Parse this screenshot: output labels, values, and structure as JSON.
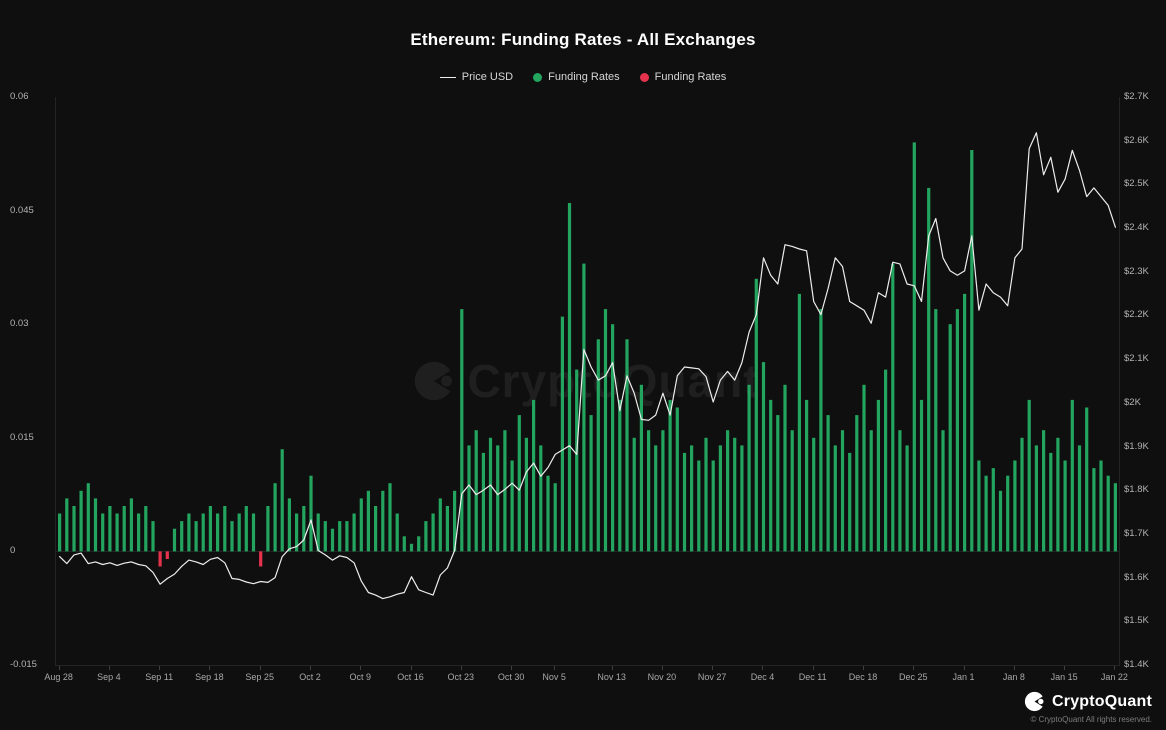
{
  "header": {
    "title": "Ethereum: Funding Rates - All Exchanges"
  },
  "legend": {
    "items": [
      {
        "label": "Price USD",
        "marker": "line",
        "color": "#ededed"
      },
      {
        "label": "Funding Rates",
        "marker": "dot",
        "color": "#23a55f"
      },
      {
        "label": "Funding Rates",
        "marker": "dot",
        "color": "#e5334d"
      }
    ]
  },
  "watermark": {
    "text": "CryptoQuant"
  },
  "footer": {
    "brand": "CryptoQuant",
    "copyright": "© CryptoQuant All rights reserved."
  },
  "colors": {
    "background": "#0f0f0f",
    "axis_text": "#b3b3b3",
    "axis_line": "#242424",
    "price_line": "#ededed",
    "funding_positive": "#23a55f",
    "funding_negative": "#e5334d"
  },
  "chart_data": {
    "type": "bar",
    "subtype": "bar + line combo with dual y-axes",
    "title": "Ethereum: Funding Rates - All Exchanges",
    "n_points": 148,
    "x_start": "Aug 28",
    "x_end": "Jan 22",
    "grid": false,
    "legend_position": "top",
    "x_tick_labels": [
      "Aug 28",
      "Sep 4",
      "Sep 11",
      "Sep 18",
      "Sep 25",
      "Oct 2",
      "Oct 9",
      "Oct 16",
      "Oct 23",
      "Oct 30",
      "Nov 5",
      "Nov 13",
      "Nov 20",
      "Nov 27",
      "Dec 4",
      "Dec 11",
      "Dec 18",
      "Dec 25",
      "Jan 1",
      "Jan 8",
      "Jan 15",
      "Jan 22"
    ],
    "x_tick_indices": [
      0,
      7,
      14,
      21,
      28,
      35,
      42,
      49,
      56,
      63,
      69,
      77,
      84,
      91,
      98,
      105,
      112,
      119,
      126,
      133,
      140,
      147
    ],
    "left_axis": {
      "label": "Funding Rates",
      "range": [
        -0.015,
        0.06
      ],
      "ticks": [
        {
          "value": 0.06,
          "label": "0.06"
        },
        {
          "value": 0.045,
          "label": "0.045"
        },
        {
          "value": 0.03,
          "label": "0.03"
        },
        {
          "value": 0.015,
          "label": "0.015"
        },
        {
          "value": 0,
          "label": "0"
        },
        {
          "value": -0.015,
          "label": "-0.015"
        }
      ]
    },
    "right_axis": {
      "label": "Price USD",
      "range": [
        1400,
        2700
      ],
      "ticks": [
        {
          "value": 2700,
          "label": "$2.7K"
        },
        {
          "value": 2600,
          "label": "$2.6K"
        },
        {
          "value": 2500,
          "label": "$2.5K"
        },
        {
          "value": 2400,
          "label": "$2.4K"
        },
        {
          "value": 2300,
          "label": "$2.3K"
        },
        {
          "value": 2200,
          "label": "$2.2K"
        },
        {
          "value": 2100,
          "label": "$2.1K"
        },
        {
          "value": 2000,
          "label": "$2K"
        },
        {
          "value": 1900,
          "label": "$1.9K"
        },
        {
          "value": 1800,
          "label": "$1.8K"
        },
        {
          "value": 1700,
          "label": "$1.7K"
        },
        {
          "value": 1600,
          "label": "$1.6K"
        },
        {
          "value": 1500,
          "label": "$1.5K"
        },
        {
          "value": 1400,
          "label": "$1.4K"
        }
      ]
    },
    "series": [
      {
        "name": "Funding Rates",
        "type": "bar",
        "axis": "left",
        "color_positive": "#23a55f",
        "color_negative": "#e5334d",
        "values": [
          0.005,
          0.007,
          0.006,
          0.008,
          0.009,
          0.007,
          0.005,
          0.006,
          0.005,
          0.006,
          0.007,
          0.005,
          0.006,
          0.004,
          -0.002,
          -0.001,
          0.003,
          0.004,
          0.005,
          0.004,
          0.005,
          0.006,
          0.005,
          0.006,
          0.004,
          0.005,
          0.006,
          0.005,
          -0.002,
          0.006,
          0.009,
          0.0135,
          0.007,
          0.005,
          0.006,
          0.01,
          0.005,
          0.004,
          0.003,
          0.004,
          0.004,
          0.005,
          0.007,
          0.008,
          0.006,
          0.008,
          0.009,
          0.005,
          0.002,
          0.001,
          0.002,
          0.004,
          0.005,
          0.007,
          0.006,
          0.008,
          0.032,
          0.014,
          0.016,
          0.013,
          0.015,
          0.014,
          0.016,
          0.012,
          0.018,
          0.015,
          0.02,
          0.014,
          0.01,
          0.009,
          0.031,
          0.046,
          0.024,
          0.038,
          0.018,
          0.028,
          0.032,
          0.03,
          0.02,
          0.028,
          0.015,
          0.022,
          0.016,
          0.014,
          0.016,
          0.02,
          0.019,
          0.013,
          0.014,
          0.012,
          0.015,
          0.012,
          0.014,
          0.016,
          0.015,
          0.014,
          0.022,
          0.036,
          0.025,
          0.02,
          0.018,
          0.022,
          0.016,
          0.034,
          0.02,
          0.015,
          0.032,
          0.018,
          0.014,
          0.016,
          0.013,
          0.018,
          0.022,
          0.016,
          0.02,
          0.024,
          0.038,
          0.016,
          0.014,
          0.054,
          0.02,
          0.048,
          0.032,
          0.016,
          0.03,
          0.032,
          0.034,
          0.053,
          0.012,
          0.01,
          0.011,
          0.008,
          0.01,
          0.012,
          0.015,
          0.02,
          0.014,
          0.016,
          0.013,
          0.015,
          0.012,
          0.02,
          0.014,
          0.019,
          0.011,
          0.012,
          0.01,
          0.009
        ]
      },
      {
        "name": "Price USD",
        "type": "line",
        "axis": "right",
        "color": "#ededed",
        "values": [
          1648,
          1632,
          1652,
          1656,
          1632,
          1636,
          1630,
          1634,
          1628,
          1633,
          1636,
          1630,
          1627,
          1612,
          1585,
          1598,
          1608,
          1626,
          1640,
          1636,
          1630,
          1642,
          1646,
          1634,
          1598,
          1596,
          1590,
          1586,
          1591,
          1589,
          1600,
          1648,
          1666,
          1671,
          1686,
          1732,
          1662,
          1652,
          1640,
          1650,
          1646,
          1634,
          1592,
          1566,
          1560,
          1552,
          1556,
          1562,
          1566,
          1602,
          1572,
          1566,
          1560,
          1606,
          1622,
          1662,
          1792,
          1812,
          1790,
          1800,
          1812,
          1790,
          1802,
          1816,
          1800,
          1842,
          1862,
          1832,
          1852,
          1882,
          1892,
          1902,
          1882,
          2122,
          2082,
          2052,
          2062,
          2092,
          1982,
          2062,
          2022,
          1962,
          1960,
          1972,
          2022,
          1972,
          2062,
          2082,
          2080,
          2078,
          2060,
          2002,
          2052,
          2072,
          2052,
          2092,
          2162,
          2202,
          2332,
          2292,
          2272,
          2362,
          2358,
          2352,
          2348,
          2232,
          2202,
          2262,
          2332,
          2312,
          2232,
          2222,
          2212,
          2182,
          2252,
          2242,
          2322,
          2318,
          2272,
          2268,
          2232,
          2382,
          2422,
          2332,
          2302,
          2292,
          2302,
          2382,
          2212,
          2272,
          2252,
          2242,
          2222,
          2332,
          2352,
          2582,
          2618,
          2522,
          2562,
          2482,
          2512,
          2578,
          2532,
          2472,
          2492,
          2472,
          2452,
          2402
        ]
      }
    ]
  }
}
